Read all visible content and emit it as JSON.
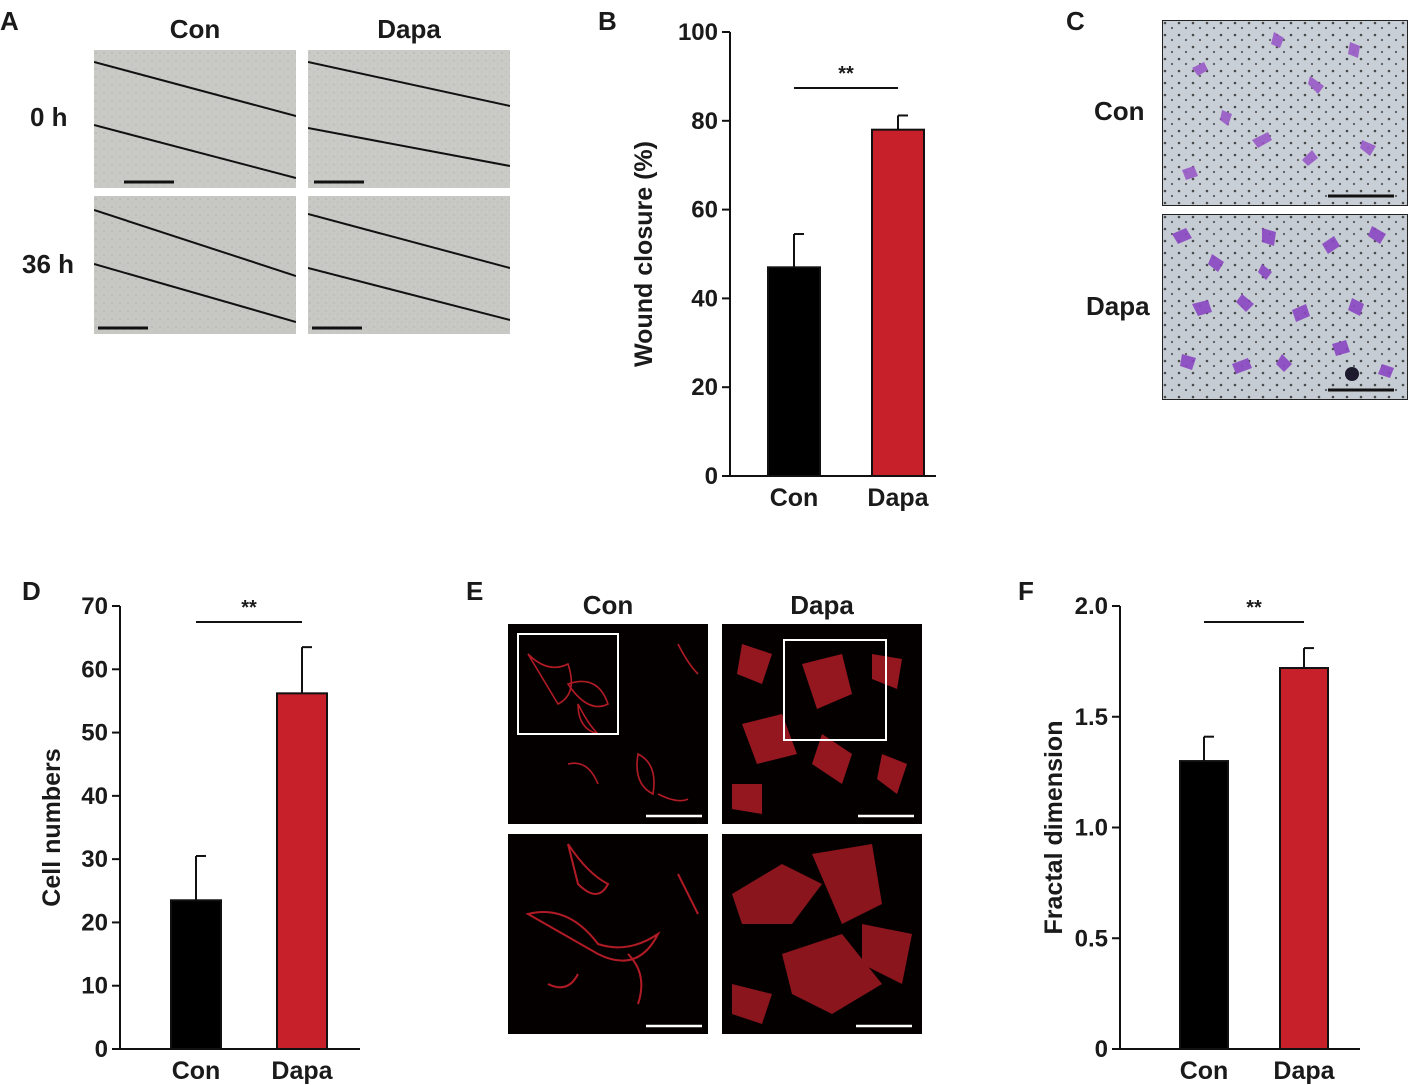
{
  "panels": {
    "a": {
      "letter": "A",
      "col_labels": [
        "Con",
        "Dapa"
      ],
      "row_labels": [
        "0 h",
        "36 h"
      ]
    },
    "c": {
      "letter": "C",
      "row_labels": [
        "Con",
        "Dapa"
      ]
    },
    "e": {
      "letter": "E",
      "col_labels": [
        "Con",
        "Dapa"
      ]
    }
  },
  "chart_data": [
    {
      "panel": "B",
      "type": "bar",
      "categories": [
        "Con",
        "Dapa"
      ],
      "values": [
        47,
        78
      ],
      "errors": [
        7.5,
        3.2
      ],
      "colors": [
        "#000000",
        "#c8202b"
      ],
      "ylabel": "Wound closure (%)",
      "xlabel": "",
      "ylim": [
        0,
        100
      ],
      "yticks": [
        "0",
        "20",
        "40",
        "60",
        "80",
        "100"
      ],
      "significance": "**"
    },
    {
      "panel": "D",
      "type": "bar",
      "categories": [
        "Con",
        "Dapa"
      ],
      "values": [
        23.5,
        56.2
      ],
      "errors": [
        7,
        7.3
      ],
      "colors": [
        "#000000",
        "#c8202b"
      ],
      "ylabel": "Cell numbers",
      "xlabel": "",
      "ylim": [
        0,
        70
      ],
      "yticks": [
        "0",
        "10",
        "20",
        "30",
        "40",
        "50",
        "60",
        "70"
      ],
      "significance": "**"
    },
    {
      "panel": "F",
      "type": "bar",
      "categories": [
        "Con",
        "Dapa"
      ],
      "values": [
        1.3,
        1.72
      ],
      "errors": [
        0.11,
        0.09
      ],
      "colors": [
        "#000000",
        "#c8202b"
      ],
      "ylabel": "Fractal dimension",
      "xlabel": "",
      "ylim": [
        0,
        2
      ],
      "yticks": [
        "0",
        "0.5",
        "1.0",
        "1.5",
        "2.0"
      ],
      "significance": "**"
    }
  ]
}
